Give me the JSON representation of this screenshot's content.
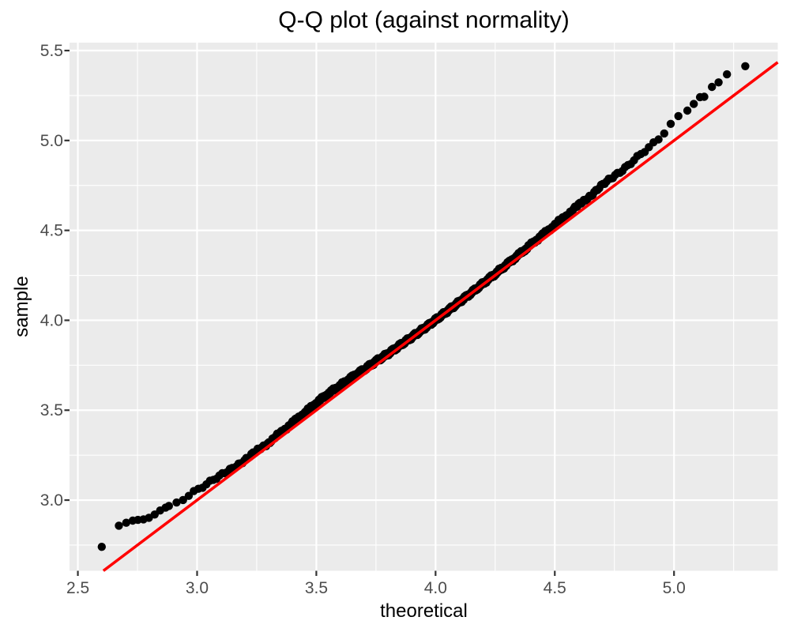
{
  "title": "Q-Q plot (against normality)",
  "axes": {
    "x": {
      "label": "theoretical",
      "ticks": [
        {
          "v": 2.5,
          "label": "2.5"
        },
        {
          "v": 3.0,
          "label": "3.0"
        },
        {
          "v": 3.5,
          "label": "3.5"
        },
        {
          "v": 4.0,
          "label": "4.0"
        },
        {
          "v": 4.5,
          "label": "4.5"
        },
        {
          "v": 5.0,
          "label": "5.0"
        }
      ],
      "minor": [
        2.75,
        3.25,
        3.75,
        4.25,
        4.75,
        5.25
      ]
    },
    "y": {
      "label": "sample",
      "ticks": [
        {
          "v": 3.0,
          "label": "3.0"
        },
        {
          "v": 3.5,
          "label": "3.5"
        },
        {
          "v": 4.0,
          "label": "4.0"
        },
        {
          "v": 4.5,
          "label": "4.5"
        },
        {
          "v": 5.0,
          "label": "5.0"
        },
        {
          "v": 5.5,
          "label": "5.5"
        }
      ],
      "minor": [
        2.75,
        3.25,
        3.75,
        4.25,
        4.75,
        5.25
      ]
    }
  },
  "colors": {
    "panel_background": "#EBEBEB",
    "grid": "#FFFFFF",
    "tick_mark": "#333333",
    "tick_label": "#4D4D4D",
    "axis_title": "#000000",
    "title": "#000000",
    "point": "#000000",
    "ref_line": "#FF0000"
  },
  "chart_data": {
    "type": "scatter",
    "subtype": "qq-plot",
    "title": "Q-Q plot (against normality)",
    "xlabel": "theoretical",
    "ylabel": "sample",
    "xlim": [
      2.465,
      5.435
    ],
    "ylim": [
      2.607,
      5.544
    ],
    "x_major_ticks": [
      2.5,
      3.0,
      3.5,
      4.0,
      4.5,
      5.0
    ],
    "y_major_ticks": [
      3.0,
      3.5,
      4.0,
      4.5,
      5.0,
      5.5
    ],
    "grid": "major-and-minor",
    "legend": "none",
    "ref_line": {
      "slope": 1,
      "intercept": 0,
      "color": "#FF0000",
      "width": 3.6
    },
    "point_style": {
      "radius": 5.2,
      "color": "#000000"
    },
    "n_points": 620,
    "theoretical_quantiles": {
      "distribution": "normal",
      "mean": 3.95,
      "sd": 0.437
    },
    "qq_curve": [
      [
        2.6,
        2.74
      ],
      [
        2.672,
        2.858
      ],
      [
        2.703,
        2.874
      ],
      [
        2.73,
        2.886
      ],
      [
        2.752,
        2.89
      ],
      [
        2.775,
        2.893
      ],
      [
        2.798,
        2.902
      ],
      [
        2.822,
        2.92
      ],
      [
        2.845,
        2.942
      ],
      [
        2.868,
        2.958
      ],
      [
        2.885,
        2.968
      ],
      [
        2.92,
        2.988
      ],
      [
        2.96,
        3.028
      ],
      [
        3.0,
        3.06
      ],
      [
        3.05,
        3.098
      ],
      [
        3.1,
        3.135
      ],
      [
        3.15,
        3.178
      ],
      [
        3.2,
        3.225
      ],
      [
        3.25,
        3.272
      ],
      [
        3.3,
        3.32
      ],
      [
        3.35,
        3.374
      ],
      [
        3.4,
        3.43
      ],
      [
        3.45,
        3.484
      ],
      [
        3.5,
        3.54
      ],
      [
        3.55,
        3.592
      ],
      [
        3.6,
        3.637
      ],
      [
        3.65,
        3.684
      ],
      [
        3.7,
        3.726
      ],
      [
        3.75,
        3.772
      ],
      [
        3.8,
        3.813
      ],
      [
        3.85,
        3.86
      ],
      [
        3.9,
        3.906
      ],
      [
        3.95,
        3.953
      ],
      [
        4.0,
        4.002
      ],
      [
        4.05,
        4.052
      ],
      [
        4.1,
        4.102
      ],
      [
        4.15,
        4.153
      ],
      [
        4.2,
        4.206
      ],
      [
        4.25,
        4.258
      ],
      [
        4.3,
        4.312
      ],
      [
        4.35,
        4.366
      ],
      [
        4.4,
        4.421
      ],
      [
        4.45,
        4.476
      ],
      [
        4.5,
        4.53
      ],
      [
        4.55,
        4.585
      ],
      [
        4.6,
        4.64
      ],
      [
        4.65,
        4.695
      ],
      [
        4.7,
        4.75
      ],
      [
        4.75,
        4.805
      ],
      [
        4.8,
        4.856
      ],
      [
        4.85,
        4.91
      ],
      [
        4.9,
        4.962
      ],
      [
        4.94,
        5.012
      ],
      [
        4.97,
        5.06
      ],
      [
        5.0,
        5.11
      ],
      [
        5.03,
        5.148
      ]
    ],
    "lower_tail_points": [
      [
        2.6,
        2.74
      ],
      [
        2.672,
        2.858
      ],
      [
        2.703,
        2.874
      ],
      [
        2.73,
        2.886
      ],
      [
        2.752,
        2.89
      ],
      [
        2.775,
        2.893
      ],
      [
        2.798,
        2.902
      ],
      [
        2.822,
        2.92
      ],
      [
        2.845,
        2.942
      ],
      [
        2.868,
        2.958
      ]
    ],
    "upper_tail_points": [
      [
        5.056,
        5.166
      ],
      [
        5.083,
        5.203
      ],
      [
        5.109,
        5.241
      ],
      [
        5.127,
        5.243
      ],
      [
        5.159,
        5.298
      ],
      [
        5.187,
        5.323
      ],
      [
        5.222,
        5.368
      ],
      [
        5.299,
        5.413
      ]
    ],
    "dense_range": [
      2.88,
      5.042
    ]
  }
}
